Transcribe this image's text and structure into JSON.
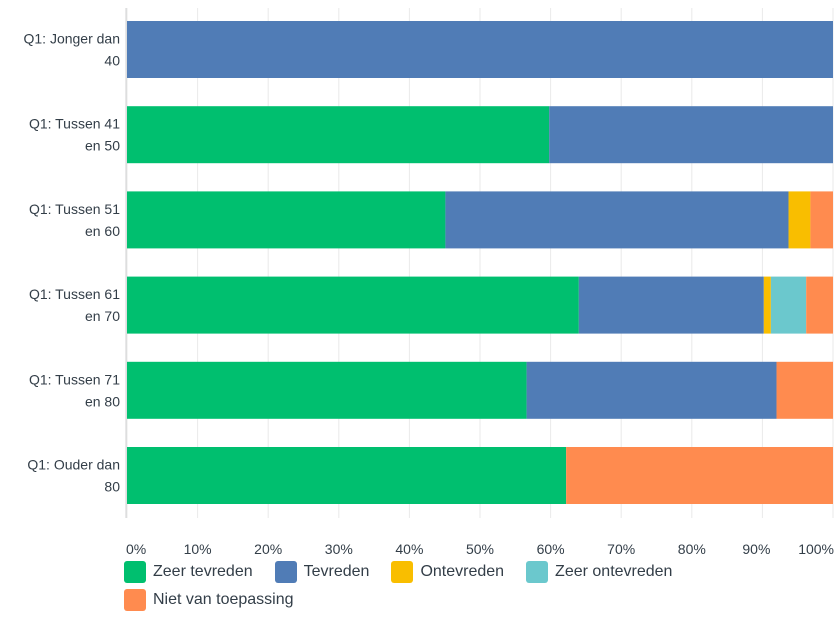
{
  "chart_data": {
    "type": "bar",
    "orientation": "horizontal",
    "stacked": true,
    "categories": [
      "Q1: Jonger dan 40",
      "Q1: Tussen 41 en 50",
      "Q1: Tussen 51 en 60",
      "Q1: Tussen 61 en 70",
      "Q1: Tussen 71 en 80",
      "Q1: Ouder dan 80"
    ],
    "series": [
      {
        "name": "Zeer tevreden",
        "color": "#00bf6f",
        "values": [
          0,
          59.8,
          45.1,
          64.0,
          56.6,
          62.2
        ]
      },
      {
        "name": "Tevreden",
        "color": "#507cb6",
        "values": [
          100,
          40.2,
          48.6,
          26.2,
          35.4,
          0
        ]
      },
      {
        "name": "Ontevreden",
        "color": "#f9be00",
        "values": [
          0,
          0,
          3.1,
          1.0,
          0,
          0
        ]
      },
      {
        "name": "Zeer ontevreden",
        "color": "#6bc8cd",
        "values": [
          0,
          0,
          0,
          5.0,
          0,
          0
        ]
      },
      {
        "name": "Niet van toepassing",
        "color": "#ff8b4f",
        "values": [
          0,
          0,
          3.2,
          3.8,
          8.0,
          37.8
        ]
      }
    ],
    "xlim": [
      0,
      100
    ],
    "x_ticks": [
      "0%",
      "10%",
      "20%",
      "30%",
      "40%",
      "50%",
      "60%",
      "70%",
      "80%",
      "90%",
      "100%"
    ],
    "grid": true,
    "legend_position": "bottom"
  }
}
